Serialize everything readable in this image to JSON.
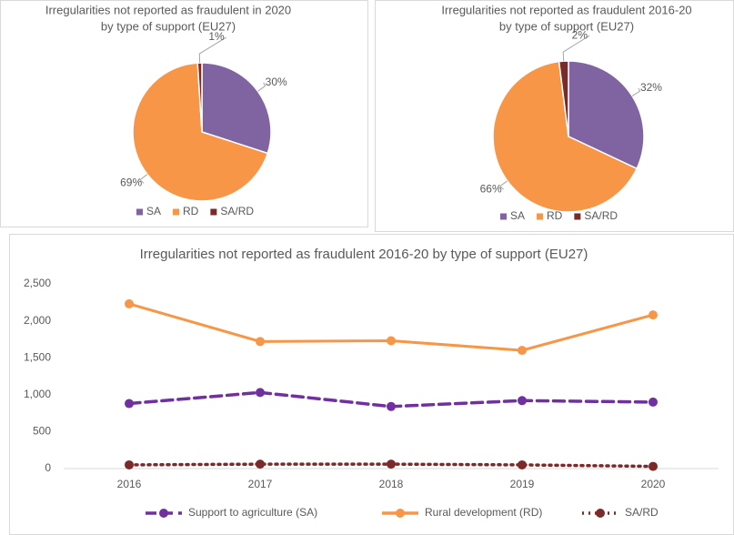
{
  "chart_data": [
    {
      "type": "pie",
      "title": [
        "Irregularities not reported as fraudulent in 2020",
        "by type of support (EU27)"
      ],
      "categories": [
        "SA",
        "RD",
        "SA/RD"
      ],
      "values": [
        30,
        69,
        1
      ],
      "value_labels": [
        "30%",
        "69%",
        "1%"
      ],
      "colors": [
        "#8064a2",
        "#f79646",
        "#7b2a2a"
      ],
      "legend": "bottom"
    },
    {
      "type": "pie",
      "title": [
        "Irregularities not reported as fraudulent 2016-20",
        "by type of support (EU27)"
      ],
      "categories": [
        "SA",
        "RD",
        "SA/RD"
      ],
      "values": [
        32,
        66,
        2
      ],
      "value_labels": [
        "32%",
        "66%",
        "2%"
      ],
      "colors": [
        "#8064a2",
        "#f79646",
        "#7b2a2a"
      ],
      "legend": "bottom"
    },
    {
      "type": "line",
      "title": "Irregularities not reported as fraudulent 2016-20 by type of support (EU27)",
      "categories": [
        "2016",
        "2017",
        "2018",
        "2019",
        "2020"
      ],
      "series": [
        {
          "name": "Support to agriculture (SA)",
          "color": "#7030a0",
          "style": "dashed",
          "values": [
            880,
            1030,
            840,
            920,
            900
          ]
        },
        {
          "name": "Rural development (RD)",
          "color": "#f79646",
          "style": "solid",
          "values": [
            2230,
            1720,
            1730,
            1600,
            2080
          ]
        },
        {
          "name": "SA/RD",
          "color": "#7b2a2a",
          "style": "dotted",
          "values": [
            50,
            60,
            60,
            50,
            30
          ]
        }
      ],
      "ylim": [
        0,
        2500
      ],
      "yticks": [
        0,
        500,
        {
          "value": 1000,
          "label": "1,000"
        },
        {
          "value": 1500,
          "label": "1,500"
        },
        {
          "value": 2000,
          "label": "2,000"
        },
        {
          "value": 2500,
          "label": "2,500"
        }
      ],
      "grid": false,
      "legend": "bottom"
    }
  ]
}
